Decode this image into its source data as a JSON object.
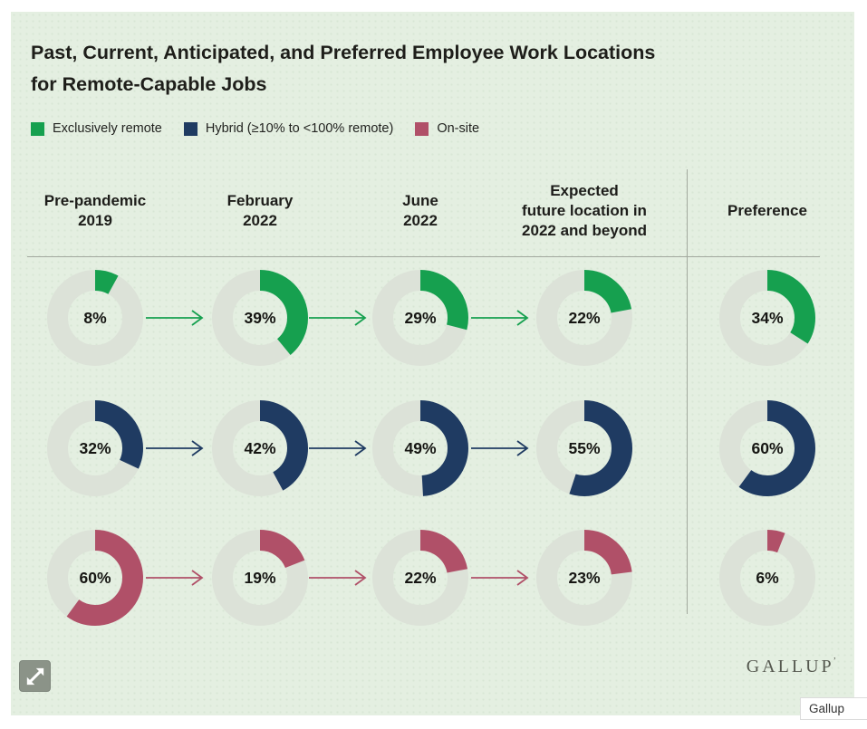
{
  "page": {
    "title_line1": "Past, Current, Anticipated, and Preferred Employee Work Locations",
    "title_line2": "for Remote-Capable Jobs"
  },
  "legend": [
    {
      "label": "Exclusively remote",
      "color": "#16a04f"
    },
    {
      "label": "Hybrid (≥10% to <100% remote)",
      "color": "#1f3b62"
    },
    {
      "label": "On-site",
      "color": "#b05068"
    }
  ],
  "chart_data": {
    "type": "pie",
    "subtype": "donut-grid",
    "title": "Past, Current, Anticipated, and Preferred Employee Work Locations for Remote-Capable Jobs",
    "unit": "%",
    "categories": [
      "Pre-pandemic 2019",
      "February 2022",
      "June 2022",
      "Expected future location in 2022 and beyond",
      "Preference"
    ],
    "column_headers": [
      "Pre-pandemic\n2019",
      "February\n2022",
      "June\n2022",
      "Expected\nfuture location in\n2022 and beyond",
      "Preference"
    ],
    "series": [
      {
        "name": "Exclusively remote",
        "color": "#16a04f",
        "values": [
          8,
          39,
          29,
          22,
          34
        ]
      },
      {
        "name": "Hybrid (≥10% to <100% remote)",
        "color": "#1f3b62",
        "values": [
          32,
          42,
          49,
          55,
          60
        ]
      },
      {
        "name": "On-site",
        "color": "#b05068",
        "values": [
          60,
          19,
          22,
          23,
          6
        ]
      }
    ],
    "donut_track_color": "#dce2d8",
    "arrows_between_timeline_columns": true,
    "preference_column_separated": true,
    "legend_position": "top-left"
  },
  "footer": {
    "logo_text": "GALLUP",
    "logo_mark": "’",
    "expand_icon": "expand-icon",
    "caption": "Gallup"
  }
}
